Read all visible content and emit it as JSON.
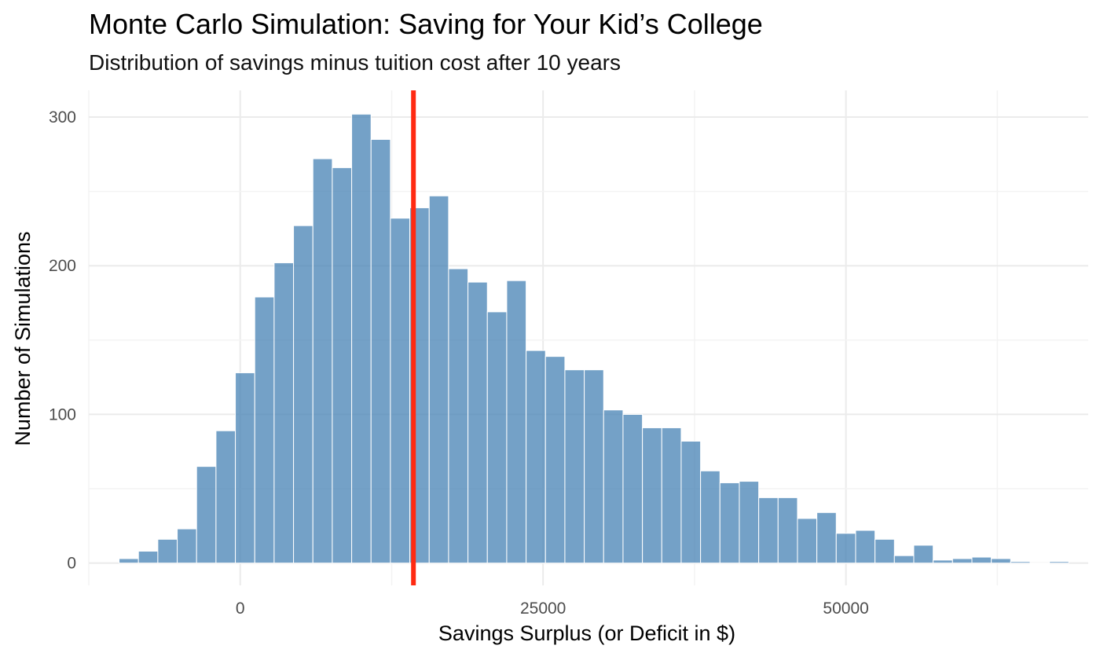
{
  "chart_data": {
    "type": "bar",
    "title": "Monte Carlo Simulation: Saving for Your Kid’s College",
    "subtitle": "Distribution of savings minus tuition cost after 10 years",
    "xlabel": "Savings Surplus (or Deficit in $)",
    "ylabel": "Number of Simulations",
    "xlim": [
      -12500,
      70000
    ],
    "ylim": [
      -15,
      318
    ],
    "x_ticks": [
      0,
      25000,
      50000
    ],
    "x_tick_labels": [
      "0",
      "25000",
      "50000"
    ],
    "y_ticks": [
      0,
      100,
      200,
      300
    ],
    "y_tick_labels": [
      "0",
      "100",
      "200",
      "300"
    ],
    "bin_width": 1600,
    "bin_centers": [
      -9200,
      -7600,
      -6000,
      -4400,
      -2800,
      -1200,
      400,
      2000,
      3600,
      5200,
      6800,
      8400,
      10000,
      11600,
      13200,
      14800,
      16400,
      18000,
      19600,
      21200,
      22800,
      24400,
      26000,
      27600,
      29200,
      30800,
      32400,
      34000,
      35600,
      37200,
      38800,
      40400,
      42000,
      43600,
      45200,
      46800,
      48400,
      50000,
      51600,
      53200,
      54800,
      56400,
      58000,
      59600,
      61200,
      62800,
      64400,
      66000,
      67600
    ],
    "values": [
      3,
      8,
      16,
      23,
      65,
      89,
      128,
      179,
      202,
      227,
      272,
      266,
      302,
      285,
      232,
      239,
      247,
      198,
      189,
      169,
      190,
      143,
      139,
      130,
      130,
      103,
      100,
      91,
      91,
      82,
      62,
      54,
      55,
      44,
      44,
      30,
      34,
      20,
      22,
      16,
      5,
      12,
      2,
      3,
      4,
      3,
      1,
      0,
      1
    ],
    "mean_line": {
      "x": 14300,
      "color": "#ff2a12"
    },
    "bar_color": "#4682b4",
    "grid": true
  }
}
